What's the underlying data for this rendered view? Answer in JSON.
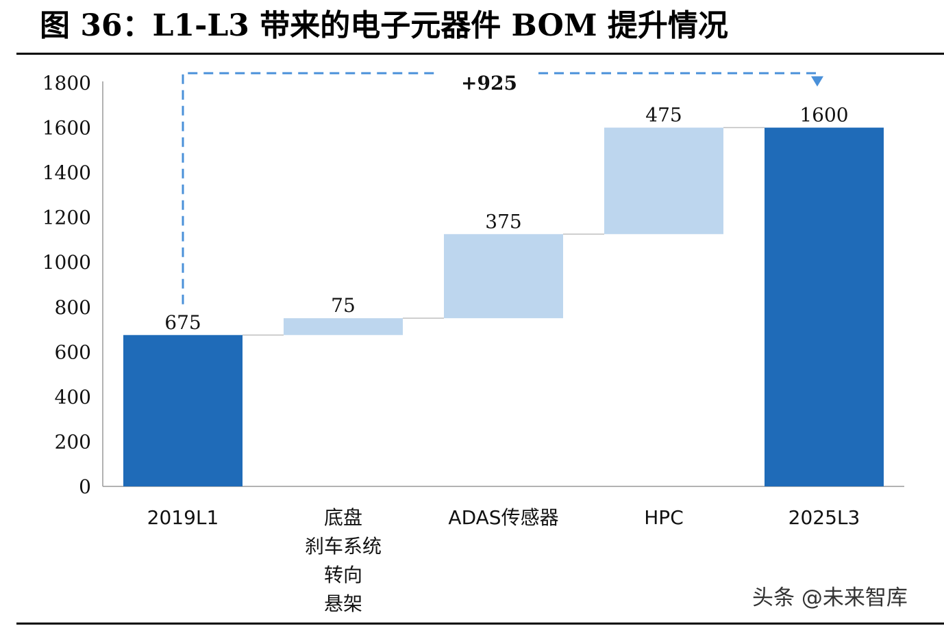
{
  "header": {
    "title": "图 36：L1-L3 带来的电子元器件 BOM 提升情况"
  },
  "watermark": {
    "text": "头条 @未来智库"
  },
  "chart_data": {
    "type": "bar",
    "variant": "waterfall",
    "title": "",
    "xlabel": "",
    "ylabel": "",
    "ylim": [
      0,
      1800
    ],
    "yticks": [
      0,
      200,
      400,
      600,
      800,
      1000,
      1200,
      1400,
      1600,
      1800
    ],
    "grid": false,
    "categories": [
      [
        "2019L1"
      ],
      [
        "底盘",
        "刹车系统",
        "转向",
        "悬架"
      ],
      [
        "ADAS传感器"
      ],
      [
        "HPC"
      ],
      [
        "2025L3"
      ]
    ],
    "bars": [
      {
        "kind": "total",
        "base": 0,
        "value": 675,
        "label": "675"
      },
      {
        "kind": "increment",
        "base": 675,
        "value": 75,
        "label": "75"
      },
      {
        "kind": "increment",
        "base": 750,
        "value": 375,
        "label": "375"
      },
      {
        "kind": "increment",
        "base": 1125,
        "value": 475,
        "label": "475"
      },
      {
        "kind": "total",
        "base": 0,
        "value": 1600,
        "label": "1600"
      }
    ],
    "annotation": {
      "text": "+925",
      "from": 675,
      "to": 1600
    },
    "colors": {
      "total": "#1f6bb8",
      "increment": "#bdd6ee",
      "arrow": "#4a90d9",
      "connector": "#bfbfbf",
      "axis": "#999999"
    }
  }
}
